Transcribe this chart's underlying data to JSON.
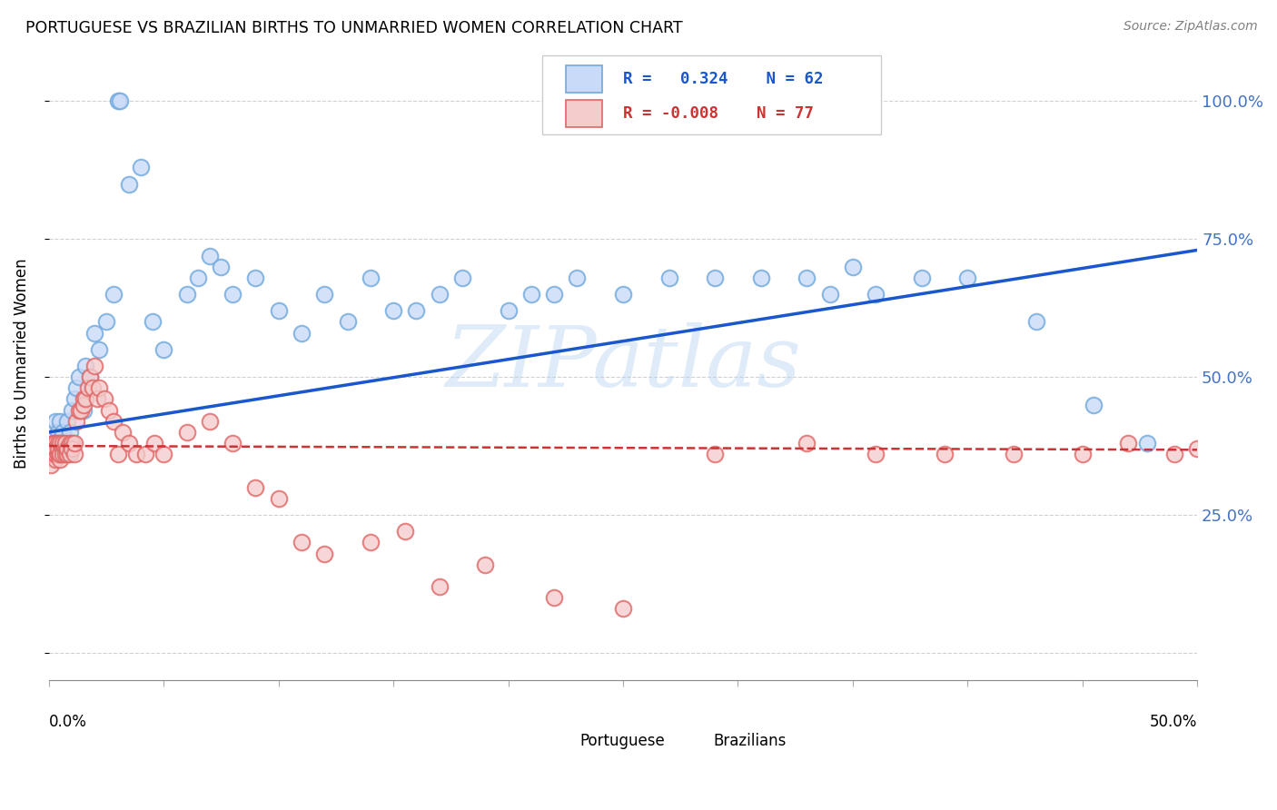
{
  "title": "PORTUGUESE VS BRAZILIAN BIRTHS TO UNMARRIED WOMEN CORRELATION CHART",
  "source": "Source: ZipAtlas.com",
  "ylabel": "Births to Unmarried Women",
  "xlim": [
    0.0,
    0.5
  ],
  "ylim": [
    -0.05,
    1.1
  ],
  "watermark": "ZIPatlas",
  "blue_face_color": "#c9daf8",
  "blue_edge_color": "#6fa8dc",
  "pink_face_color": "#f4cccc",
  "pink_edge_color": "#e06666",
  "blue_line_color": "#1a56cc",
  "pink_line_color": "#cc3333",
  "background_color": "#ffffff",
  "grid_color": "#cccccc",
  "right_tick_color": "#4472c4",
  "legend_blue_text_color": "#1a56cc",
  "legend_pink_text_color": "#cc3333",
  "ytick_vals": [
    0.0,
    0.25,
    0.5,
    0.75,
    1.0
  ],
  "ytick_labels": [
    "",
    "25.0%",
    "50.0%",
    "75.0%",
    "100.0%"
  ],
  "port_x": [
    0.001,
    0.002,
    0.002,
    0.003,
    0.003,
    0.004,
    0.004,
    0.005,
    0.005,
    0.006,
    0.007,
    0.008,
    0.009,
    0.01,
    0.011,
    0.012,
    0.013,
    0.015,
    0.016,
    0.018,
    0.02,
    0.022,
    0.025,
    0.028,
    0.03,
    0.031,
    0.035,
    0.04,
    0.045,
    0.05,
    0.06,
    0.065,
    0.07,
    0.075,
    0.08,
    0.09,
    0.1,
    0.11,
    0.12,
    0.13,
    0.14,
    0.15,
    0.16,
    0.17,
    0.18,
    0.2,
    0.21,
    0.22,
    0.23,
    0.25,
    0.27,
    0.29,
    0.31,
    0.33,
    0.34,
    0.35,
    0.36,
    0.38,
    0.4,
    0.43,
    0.455,
    0.478
  ],
  "port_y": [
    0.36,
    0.38,
    0.4,
    0.38,
    0.42,
    0.37,
    0.4,
    0.38,
    0.42,
    0.4,
    0.38,
    0.42,
    0.4,
    0.44,
    0.46,
    0.48,
    0.5,
    0.44,
    0.52,
    0.5,
    0.58,
    0.55,
    0.6,
    0.65,
    1.0,
    1.0,
    0.85,
    0.88,
    0.6,
    0.55,
    0.65,
    0.68,
    0.72,
    0.7,
    0.65,
    0.68,
    0.62,
    0.58,
    0.65,
    0.6,
    0.68,
    0.62,
    0.62,
    0.65,
    0.68,
    0.62,
    0.65,
    0.65,
    0.68,
    0.65,
    0.68,
    0.68,
    0.68,
    0.68,
    0.65,
    0.7,
    0.65,
    0.68,
    0.68,
    0.6,
    0.45,
    0.38
  ],
  "braz_x": [
    0.001,
    0.001,
    0.002,
    0.002,
    0.002,
    0.002,
    0.003,
    0.003,
    0.003,
    0.003,
    0.003,
    0.004,
    0.004,
    0.004,
    0.004,
    0.005,
    0.005,
    0.005,
    0.005,
    0.006,
    0.006,
    0.006,
    0.007,
    0.007,
    0.007,
    0.008,
    0.008,
    0.009,
    0.009,
    0.01,
    0.01,
    0.011,
    0.011,
    0.012,
    0.013,
    0.014,
    0.015,
    0.015,
    0.016,
    0.017,
    0.018,
    0.019,
    0.02,
    0.021,
    0.022,
    0.024,
    0.026,
    0.028,
    0.03,
    0.032,
    0.035,
    0.038,
    0.042,
    0.046,
    0.05,
    0.06,
    0.07,
    0.08,
    0.09,
    0.1,
    0.11,
    0.12,
    0.14,
    0.155,
    0.17,
    0.19,
    0.22,
    0.25,
    0.29,
    0.33,
    0.36,
    0.39,
    0.42,
    0.45,
    0.47,
    0.49,
    0.5
  ],
  "braz_y": [
    0.34,
    0.36,
    0.36,
    0.38,
    0.36,
    0.38,
    0.35,
    0.36,
    0.38,
    0.36,
    0.37,
    0.36,
    0.38,
    0.36,
    0.37,
    0.35,
    0.36,
    0.38,
    0.36,
    0.37,
    0.36,
    0.38,
    0.37,
    0.36,
    0.38,
    0.36,
    0.37,
    0.38,
    0.36,
    0.38,
    0.37,
    0.36,
    0.38,
    0.42,
    0.44,
    0.44,
    0.46,
    0.45,
    0.46,
    0.48,
    0.5,
    0.48,
    0.52,
    0.46,
    0.48,
    0.46,
    0.44,
    0.42,
    0.36,
    0.4,
    0.38,
    0.36,
    0.36,
    0.38,
    0.36,
    0.4,
    0.42,
    0.38,
    0.3,
    0.28,
    0.2,
    0.18,
    0.2,
    0.22,
    0.12,
    0.16,
    0.1,
    0.08,
    0.36,
    0.38,
    0.36,
    0.36,
    0.36,
    0.36,
    0.38,
    0.36,
    0.37
  ]
}
